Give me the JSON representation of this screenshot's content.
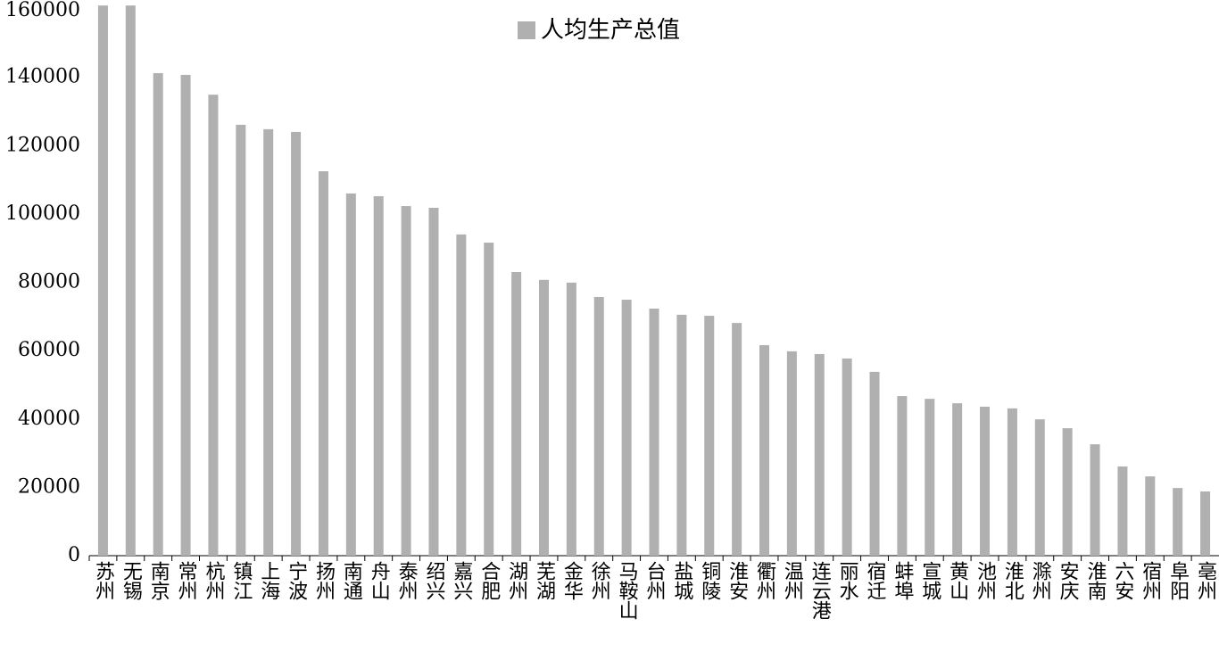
{
  "chart_data": {
    "type": "bar",
    "legend_label": "人均生产总值",
    "legend_position": "top",
    "color": "#b0b0b0",
    "categories": [
      "苏州",
      "无锡",
      "南京",
      "常州",
      "杭州",
      "镇江",
      "上海",
      "宁波",
      "扬州",
      "南通",
      "舟山",
      "泰州",
      "绍兴",
      "嘉兴",
      "合肥",
      "湖州",
      "芜湖",
      "金华",
      "徐州",
      "马鞍山",
      "台州",
      "盐城",
      "铜陵",
      "淮安",
      "衢州",
      "温州",
      "连云港",
      "丽水",
      "宿迁",
      "蚌埠",
      "宣城",
      "黄山",
      "池州",
      "淮北",
      "滁州",
      "安庆",
      "淮南",
      "六安",
      "宿州",
      "阜阳",
      "亳州"
    ],
    "values": [
      161000,
      161000,
      141200,
      140700,
      134900,
      126100,
      124800,
      124000,
      112500,
      106000,
      105200,
      102300,
      101800,
      94000,
      91600,
      83000,
      80700,
      79900,
      75700,
      74900,
      72300,
      70500,
      70200,
      68100,
      61600,
      59800,
      59000,
      57700,
      53800,
      46700,
      45900,
      44600,
      43600,
      43100,
      39900,
      37300,
      32600,
      26100,
      23200,
      19800,
      18800
    ],
    "ylim": [
      0,
      160000
    ],
    "yticks": [
      0,
      20000,
      40000,
      60000,
      80000,
      100000,
      120000,
      140000,
      160000
    ]
  }
}
